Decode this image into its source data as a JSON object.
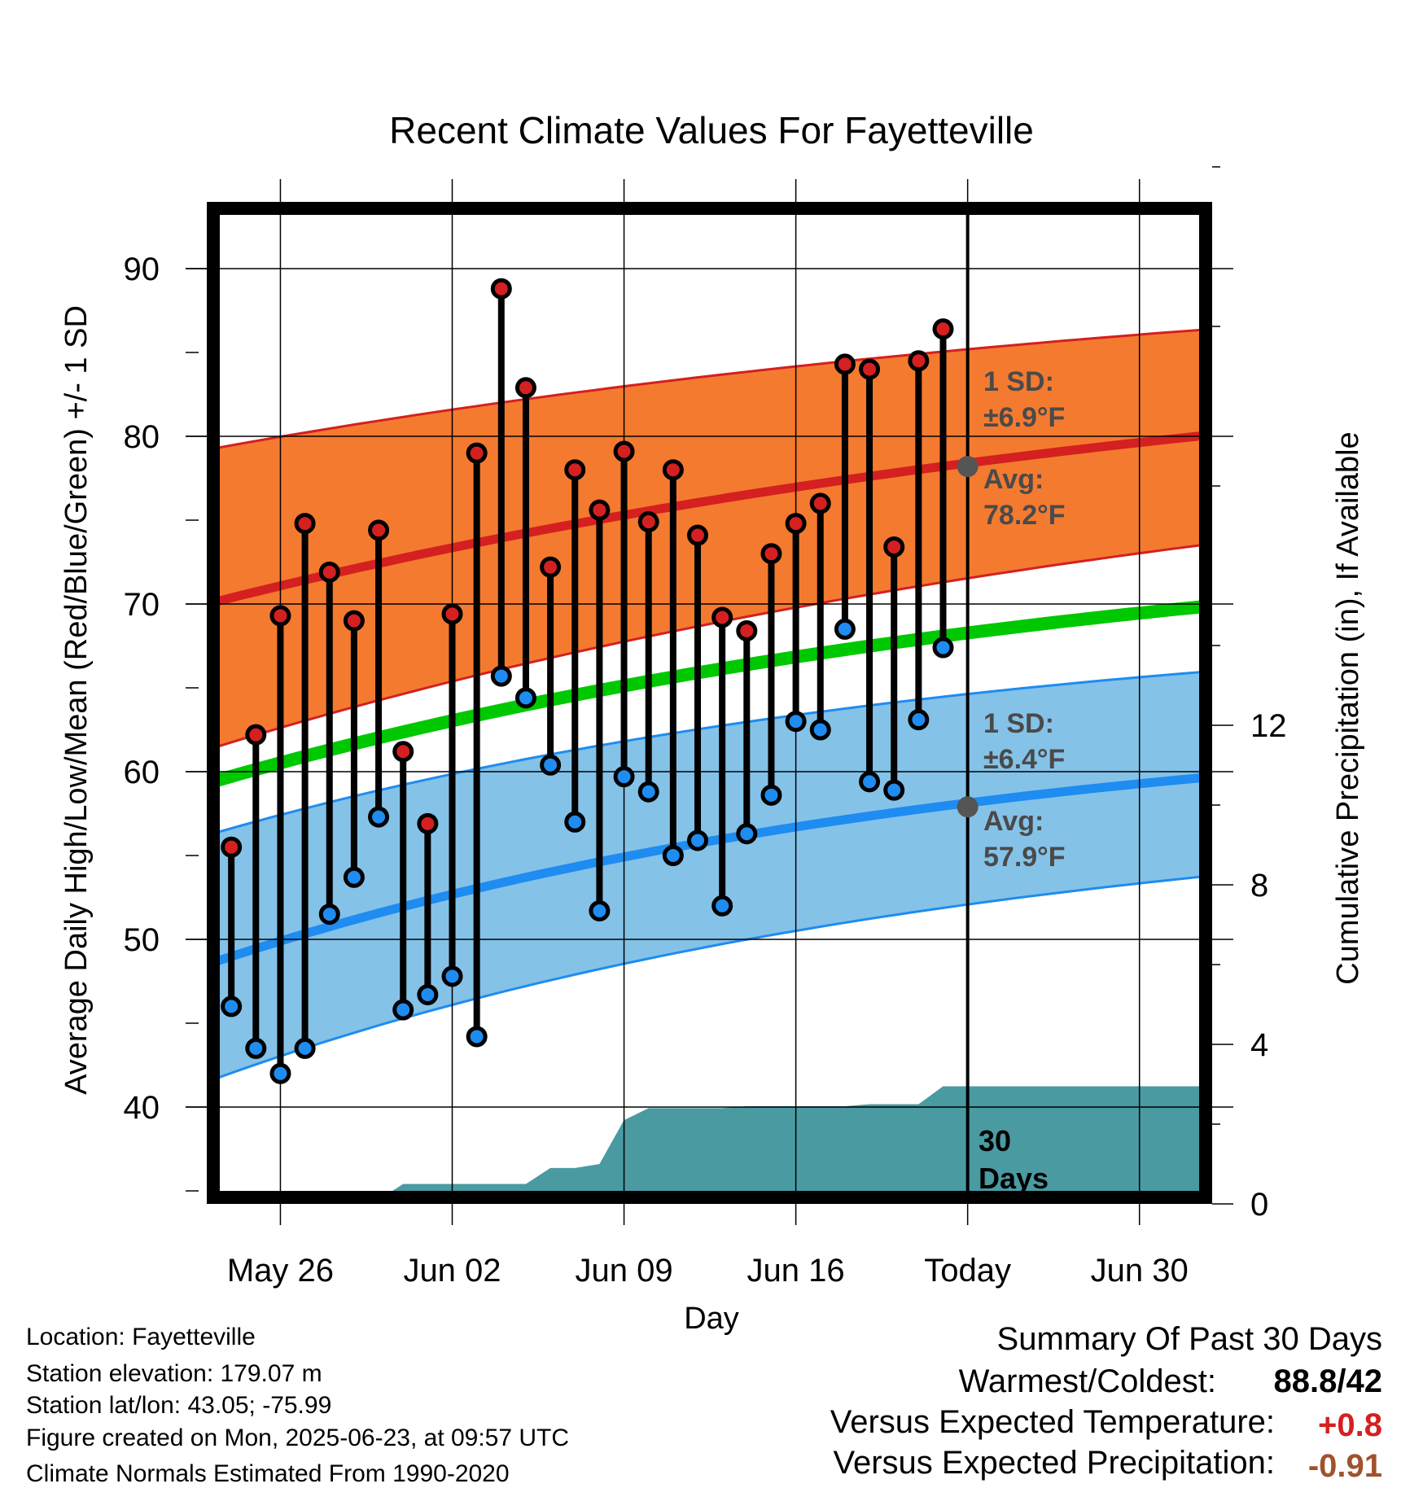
{
  "chart_data": {
    "type": "line",
    "title": "Recent Climate Values For Fayetteville",
    "xlabel": "Day",
    "ylabel": "Average Daily High/Low/Mean (Red/Blue/Green) +/- 1 SD",
    "y2label": "Cumulative Precipitation (in), If Available",
    "ylim": [
      34.5,
      94.5
    ],
    "y2lim": [
      0,
      28.4
    ],
    "xlim": [
      "2025-05-23",
      "2025-07-03"
    ],
    "x_ticks": [
      {
        "date": "2025-05-26",
        "label": "May 26"
      },
      {
        "date": "2025-06-02",
        "label": "Jun 02"
      },
      {
        "date": "2025-06-09",
        "label": "Jun 09"
      },
      {
        "date": "2025-06-16",
        "label": "Jun 16"
      },
      {
        "date": "2025-06-23",
        "label": "Today"
      },
      {
        "date": "2025-06-30",
        "label": "Jun 30"
      }
    ],
    "y_ticks": [
      40,
      50,
      60,
      70,
      80,
      90
    ],
    "y2_ticks": [
      0,
      4,
      8,
      12
    ],
    "grid": true,
    "today": "2025-06-23",
    "colors": {
      "high": "#d42020",
      "low": "#1e8cf0",
      "mean": "#00c800",
      "high_band": "#f47a30",
      "low_band": "#85c2e8",
      "precip": "#4a9aa2",
      "marker_dot": "#555555"
    },
    "normals": {
      "start_date": "2025-05-23",
      "end_date": "2025-07-03",
      "high_avg": [
        70.0,
        80.1
      ],
      "high_upper": [
        79.2,
        86.4
      ],
      "high_lower": [
        61.3,
        73.6
      ],
      "low_avg": [
        48.5,
        59.7
      ],
      "low_upper": [
        56.2,
        66.0
      ],
      "low_lower": [
        41.5,
        53.8
      ],
      "mean_avg": [
        59.3,
        69.9
      ]
    },
    "series": [
      {
        "name": "High",
        "values": [
          {
            "x": "2025-05-24",
            "y": 55.5
          },
          {
            "x": "2025-05-25",
            "y": 62.2
          },
          {
            "x": "2025-05-26",
            "y": 69.3
          },
          {
            "x": "2025-05-27",
            "y": 74.8
          },
          {
            "x": "2025-05-28",
            "y": 71.9
          },
          {
            "x": "2025-05-29",
            "y": 69.0
          },
          {
            "x": "2025-05-30",
            "y": 74.4
          },
          {
            "x": "2025-05-31",
            "y": 61.2
          },
          {
            "x": "2025-06-01",
            "y": 56.9
          },
          {
            "x": "2025-06-02",
            "y": 69.4
          },
          {
            "x": "2025-06-03",
            "y": 79.0
          },
          {
            "x": "2025-06-04",
            "y": 88.8
          },
          {
            "x": "2025-06-05",
            "y": 82.9
          },
          {
            "x": "2025-06-06",
            "y": 72.2
          },
          {
            "x": "2025-06-07",
            "y": 78.0
          },
          {
            "x": "2025-06-08",
            "y": 75.6
          },
          {
            "x": "2025-06-09",
            "y": 79.1
          },
          {
            "x": "2025-06-10",
            "y": 74.9
          },
          {
            "x": "2025-06-11",
            "y": 78.0
          },
          {
            "x": "2025-06-12",
            "y": 74.1
          },
          {
            "x": "2025-06-13",
            "y": 69.2
          },
          {
            "x": "2025-06-14",
            "y": 68.4
          },
          {
            "x": "2025-06-15",
            "y": 73.0
          },
          {
            "x": "2025-06-16",
            "y": 74.8
          },
          {
            "x": "2025-06-17",
            "y": 76.0
          },
          {
            "x": "2025-06-18",
            "y": 84.3
          },
          {
            "x": "2025-06-19",
            "y": 84.0
          },
          {
            "x": "2025-06-20",
            "y": 73.4
          },
          {
            "x": "2025-06-21",
            "y": 84.5
          },
          {
            "x": "2025-06-22",
            "y": 86.4
          }
        ]
      },
      {
        "name": "Low",
        "values": [
          {
            "x": "2025-05-24",
            "y": 46.0
          },
          {
            "x": "2025-05-25",
            "y": 43.5
          },
          {
            "x": "2025-05-26",
            "y": 42.0
          },
          {
            "x": "2025-05-27",
            "y": 43.5
          },
          {
            "x": "2025-05-28",
            "y": 51.5
          },
          {
            "x": "2025-05-29",
            "y": 53.7
          },
          {
            "x": "2025-05-30",
            "y": 57.3
          },
          {
            "x": "2025-05-31",
            "y": 45.8
          },
          {
            "x": "2025-06-01",
            "y": 46.7
          },
          {
            "x": "2025-06-02",
            "y": 47.8
          },
          {
            "x": "2025-06-03",
            "y": 44.2
          },
          {
            "x": "2025-06-04",
            "y": 65.7
          },
          {
            "x": "2025-06-05",
            "y": 64.4
          },
          {
            "x": "2025-06-06",
            "y": 60.4
          },
          {
            "x": "2025-06-07",
            "y": 57.0
          },
          {
            "x": "2025-06-08",
            "y": 51.7
          },
          {
            "x": "2025-06-09",
            "y": 59.7
          },
          {
            "x": "2025-06-10",
            "y": 58.8
          },
          {
            "x": "2025-06-11",
            "y": 55.0
          },
          {
            "x": "2025-06-12",
            "y": 55.9
          },
          {
            "x": "2025-06-13",
            "y": 52.0
          },
          {
            "x": "2025-06-14",
            "y": 56.3
          },
          {
            "x": "2025-06-15",
            "y": 58.6
          },
          {
            "x": "2025-06-16",
            "y": 63.0
          },
          {
            "x": "2025-06-17",
            "y": 62.5
          },
          {
            "x": "2025-06-18",
            "y": 68.5
          },
          {
            "x": "2025-06-19",
            "y": 59.4
          },
          {
            "x": "2025-06-20",
            "y": 58.9
          },
          {
            "x": "2025-06-21",
            "y": 63.1
          },
          {
            "x": "2025-06-22",
            "y": 67.4
          }
        ]
      },
      {
        "name": "Cumulative Precipitation",
        "values": [
          {
            "x": "2025-05-23",
            "y": 0
          },
          {
            "x": "2025-05-28",
            "y": 0
          },
          {
            "x": "2025-05-29",
            "y": 0.1
          },
          {
            "x": "2025-05-30",
            "y": 0.1
          },
          {
            "x": "2025-05-31",
            "y": 0.5
          },
          {
            "x": "2025-06-05",
            "y": 0.5
          },
          {
            "x": "2025-06-06",
            "y": 0.9
          },
          {
            "x": "2025-06-07",
            "y": 0.9
          },
          {
            "x": "2025-06-08",
            "y": 1.0
          },
          {
            "x": "2025-06-09",
            "y": 2.1
          },
          {
            "x": "2025-06-10",
            "y": 2.4
          },
          {
            "x": "2025-06-13",
            "y": 2.4
          },
          {
            "x": "2025-06-14",
            "y": 2.45
          },
          {
            "x": "2025-06-18",
            "y": 2.45
          },
          {
            "x": "2025-06-19",
            "y": 2.5
          },
          {
            "x": "2025-06-21",
            "y": 2.5
          },
          {
            "x": "2025-06-22",
            "y": 2.95
          },
          {
            "x": "2025-07-03",
            "y": 2.95
          }
        ]
      }
    ],
    "annotations": {
      "high_sd_label": "1 SD:",
      "high_sd_value": "±6.9°F",
      "high_avg_label": "Avg:",
      "high_avg_value": "78.2°F",
      "high_avg_marker": 78.2,
      "low_sd_label": "1 SD:",
      "low_sd_value": "±6.4°F",
      "low_avg_label": "Avg:",
      "low_avg_value": "57.9°F",
      "low_avg_marker": 57.9,
      "days_line1": "30",
      "days_line2": "Days"
    }
  },
  "info": {
    "location": "Location: Fayetteville",
    "elevation": "Station elevation: 179.07 m",
    "latlon": "Station lat/lon: 43.05; -75.99",
    "created": "Figure created on Mon, 2025-06-23, at 09:57 UTC",
    "normals": "Climate Normals Estimated From 1990-2020"
  },
  "summary": {
    "heading": "Summary Of Past 30 Days",
    "warmest_label": "Warmest/Coldest:",
    "warmest_value": "88.8/42",
    "temp_label": "Versus Expected Temperature:",
    "temp_value": "+0.8",
    "temp_color": "#d42020",
    "precip_label": "Versus Expected Precipitation:",
    "precip_value": "-0.91",
    "precip_color": "#a0522d"
  }
}
